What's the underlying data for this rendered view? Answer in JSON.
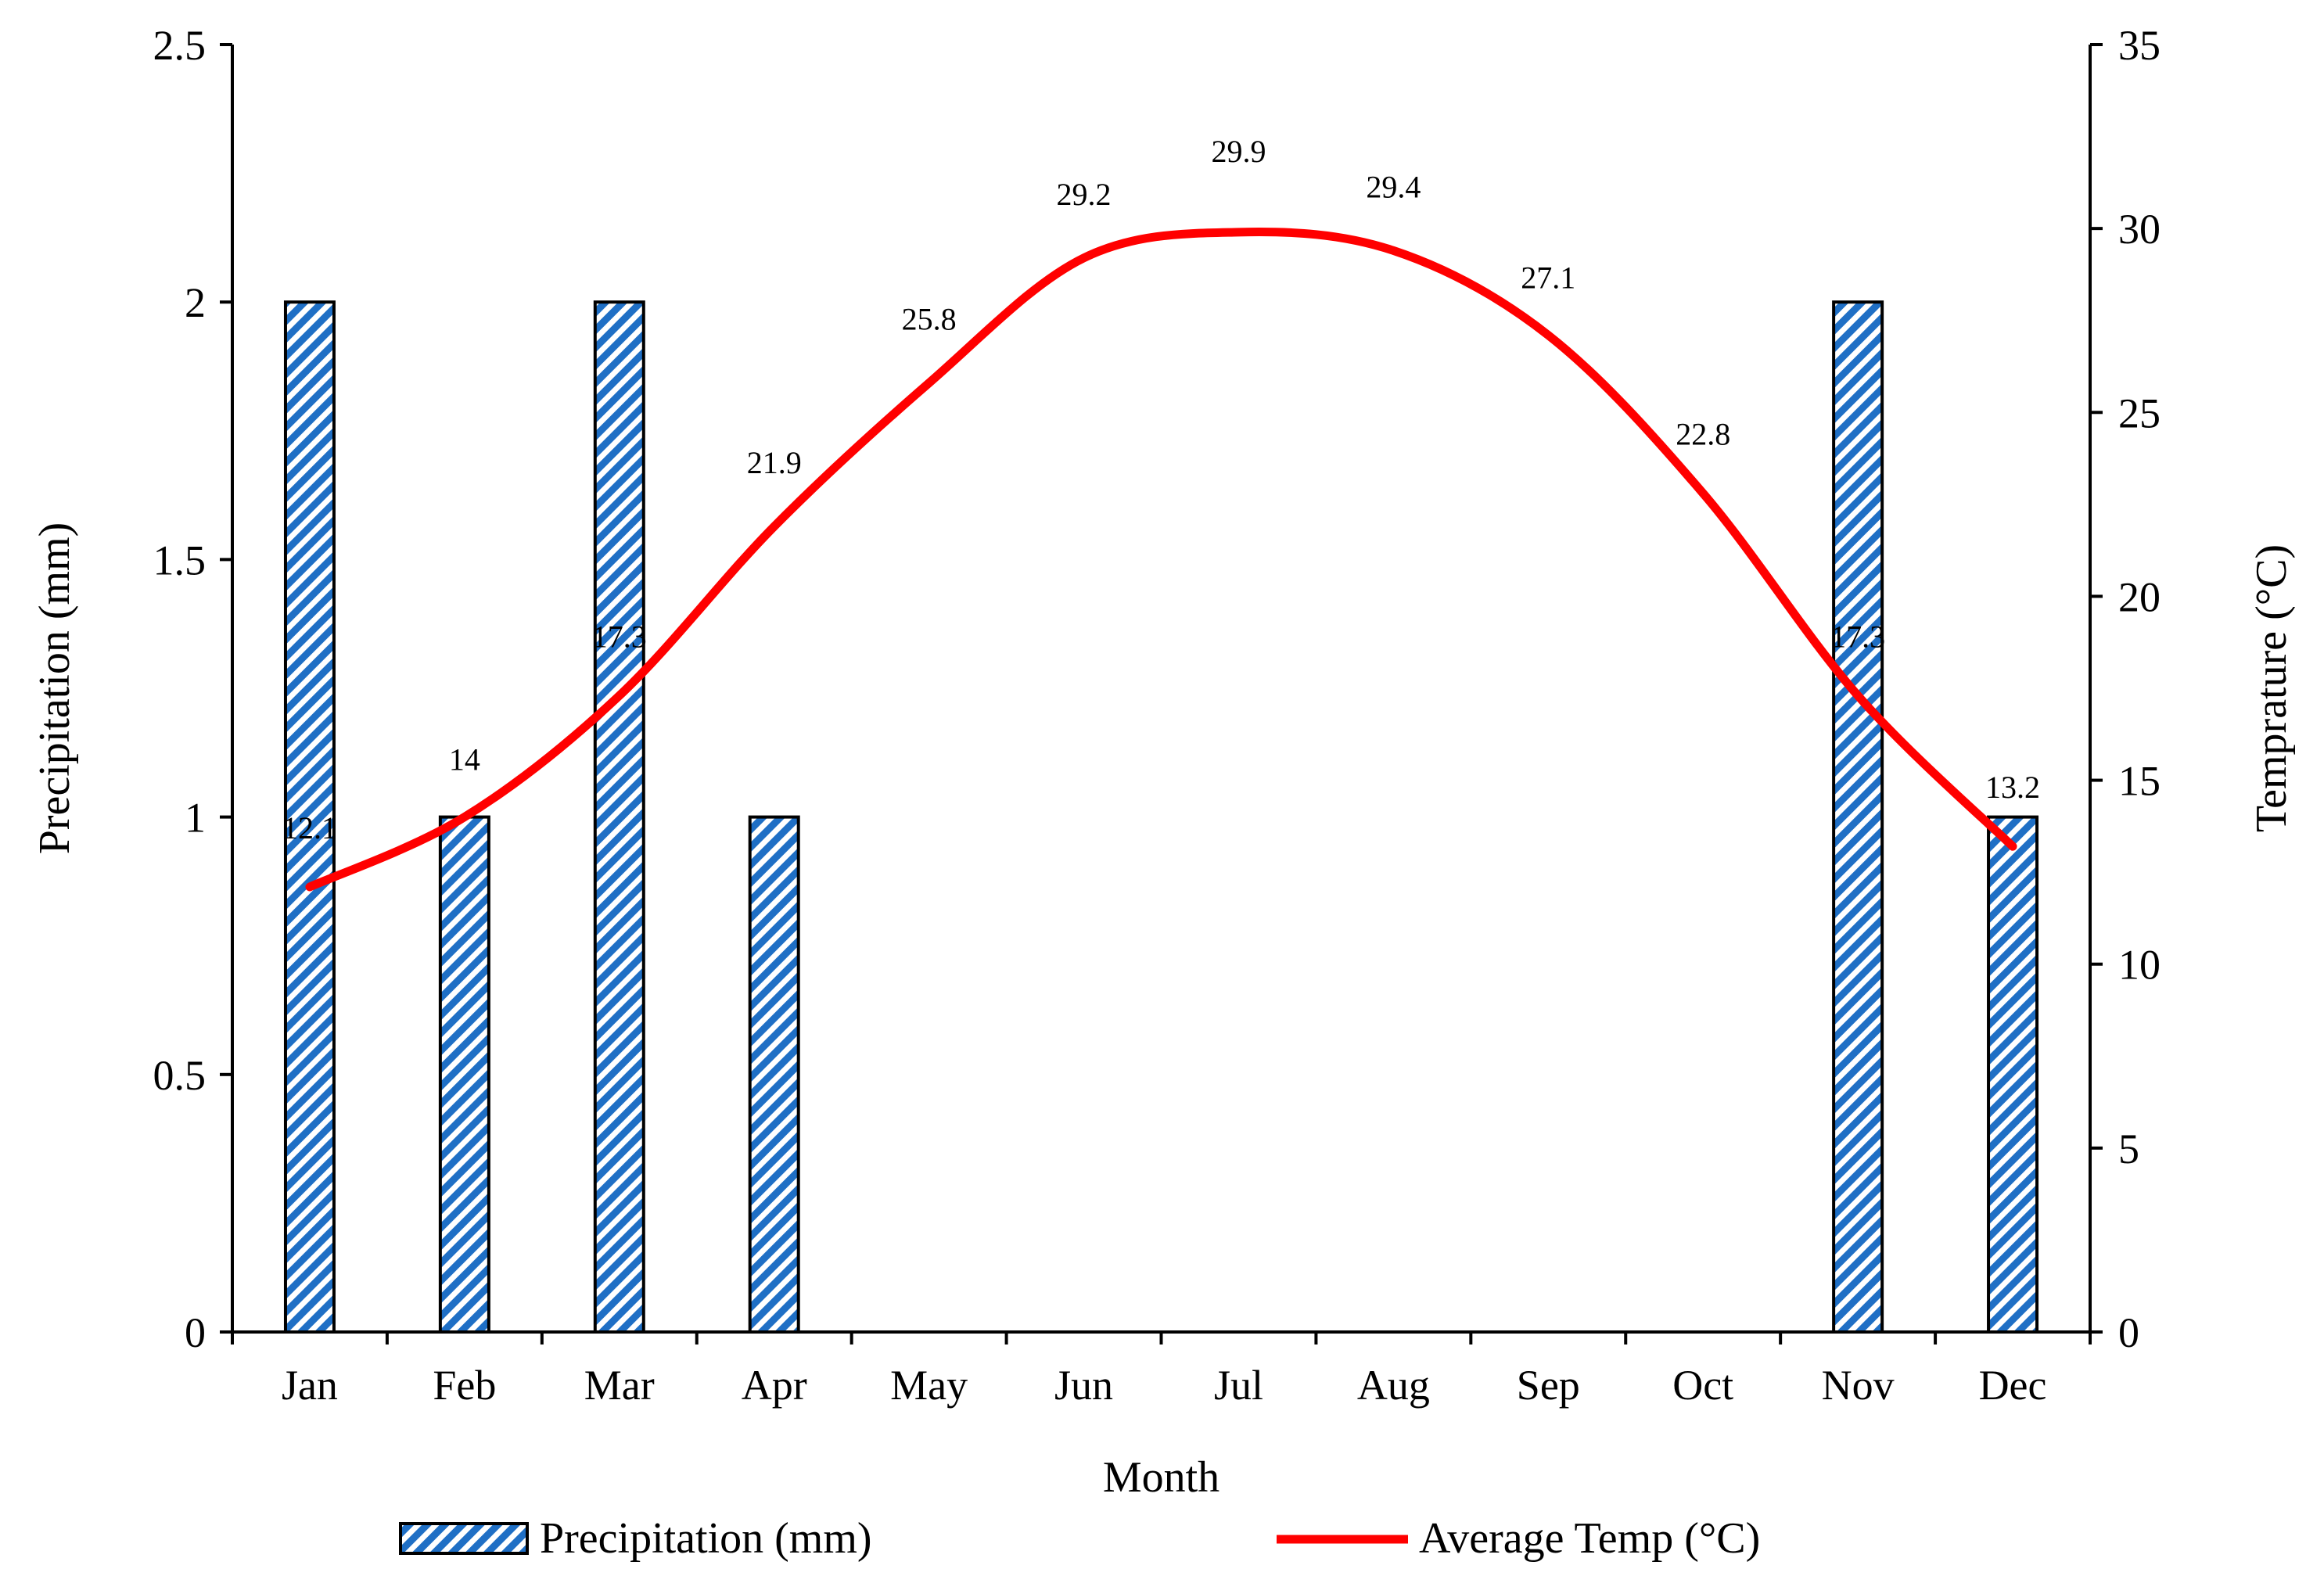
{
  "chart_data": {
    "type": "bar+line",
    "categories": [
      "Jan",
      "Feb",
      "Mar",
      "Apr",
      "May",
      "Jun",
      "Jul",
      "Aug",
      "Sep",
      "Oct",
      "Nov",
      "Dec"
    ],
    "series": [
      {
        "name": "Precipitation (mm)",
        "type": "bar",
        "axis": "left",
        "values": [
          2,
          1,
          2,
          1,
          0,
          0,
          0,
          0,
          0,
          0,
          2,
          1
        ],
        "color": "#1F6FC5",
        "pattern": "diagonal-stripes"
      },
      {
        "name": "Average Temp (°C)",
        "type": "line",
        "axis": "right",
        "smooth": true,
        "values": [
          12.1,
          14,
          17.3,
          21.9,
          25.8,
          29.2,
          29.9,
          29.4,
          27.1,
          22.8,
          17.3,
          13.2
        ],
        "labels": [
          "12.1",
          "14",
          "17.3",
          "21.9",
          "25.8",
          "29.2",
          "29.9",
          "29.4",
          "27.1",
          "22.8",
          "17.3",
          "13.2"
        ],
        "color": "#FF0000"
      }
    ],
    "xlabel": "Month",
    "ylabel": "Precipitation (mm)",
    "y2label": "Temprature (°C)",
    "ylim": [
      0,
      2.5
    ],
    "y2lim": [
      0,
      35
    ],
    "yticks": [
      0,
      0.5,
      1,
      1.5,
      2,
      2.5
    ],
    "yticklabels": [
      "0",
      "0.5",
      "1",
      "1.5",
      "2",
      "2.5"
    ],
    "y2ticks": [
      0,
      5,
      10,
      15,
      20,
      25,
      30,
      35
    ],
    "y2ticklabels": [
      "0",
      "5",
      "10",
      "15",
      "20",
      "25",
      "30",
      "35"
    ],
    "grid": false,
    "legend_position": "bottom"
  }
}
